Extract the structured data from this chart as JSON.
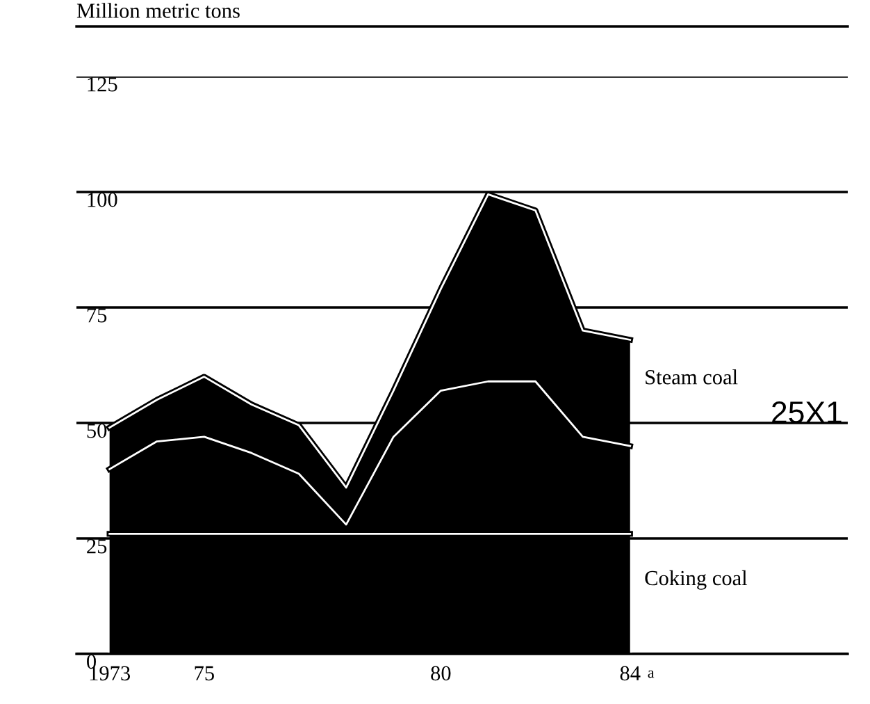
{
  "chart_data": {
    "type": "area",
    "stacked": true,
    "ylabel": "Million metric tons",
    "x": [
      1973,
      1974,
      1975,
      1976,
      1977,
      1978,
      1979,
      1980,
      1981,
      1982,
      1983,
      1984
    ],
    "series": [
      {
        "name": "Coking coal",
        "color": "#000000",
        "values": [
          26,
          26,
          26,
          26,
          26,
          26,
          26,
          26,
          26,
          26,
          26,
          26
        ]
      },
      {
        "color": "#000000",
        "values": [
          14,
          20,
          21,
          17.5,
          13,
          2,
          21,
          31,
          33,
          33,
          21,
          19
        ]
      },
      {
        "name": "Steam coal",
        "color": "#000000",
        "values": [
          9,
          9,
          13,
          10.5,
          10.5,
          8,
          10,
          22,
          40.5,
          37,
          23,
          23
        ]
      }
    ],
    "xlim": [
      1972.3,
      1988.6
    ],
    "ylim": [
      0,
      125
    ],
    "xticks": [
      {
        "value": 1973,
        "label": "1973"
      },
      {
        "value": 1974,
        "label": null
      },
      {
        "value": 1975,
        "label": "75"
      },
      {
        "value": 1976,
        "label": null
      },
      {
        "value": 1977,
        "label": null
      },
      {
        "value": 1978,
        "label": null
      },
      {
        "value": 1979,
        "label": null
      },
      {
        "value": 1980,
        "label": "80"
      },
      {
        "value": 1981,
        "label": null
      },
      {
        "value": 1982,
        "label": null
      },
      {
        "value": 1983,
        "label": null
      },
      {
        "value": 1984,
        "label": "84"
      }
    ],
    "yticks": [
      0,
      25,
      50,
      75,
      100,
      125
    ],
    "grid": "y",
    "legend": false,
    "annotations": [
      "25X1",
      "a"
    ]
  }
}
